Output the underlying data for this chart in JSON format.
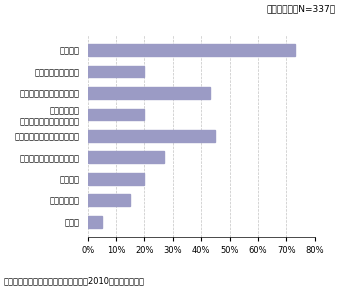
{
  "categories": [
    "その他",
    "地域統括拠点",
    "物流機能",
    "研究開発機能（基礎研究）",
    "研究開発機能（新製品開発）",
    "研究開発機能\n（現地市場向け仕様変更）",
    "生産機能（高付加価値品）",
    "生産機能（汎用品）",
    "販売機能"
  ],
  "values": [
    5,
    15,
    20,
    27,
    45,
    20,
    43,
    20,
    73
  ],
  "bar_color": "#9b9bc5",
  "xlim": [
    0,
    80
  ],
  "xticks": [
    0,
    10,
    20,
    30,
    40,
    50,
    60,
    70,
    80
  ],
  "xtick_labels": [
    "0%",
    "10%",
    "20%",
    "30%",
    "40%",
    "50%",
    "60%",
    "70%",
    "80%"
  ],
  "note_top": "（複数回答：N=337）",
  "note_bottom": "資料：「ジェトロ海外事業活動調査（2010）」から作成。",
  "grid_color": "#aaaaaa",
  "background_color": "#ffffff"
}
